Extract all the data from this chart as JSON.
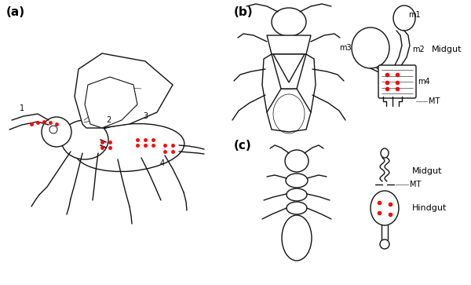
{
  "bg_color": "#ffffff",
  "lc": "#111111",
  "rc": "#ff0000",
  "gc": "#888888",
  "lw": 1.0,
  "fs_panel": 11,
  "fs_label": 7,
  "fs_num": 7,
  "panel_a_label": "(a)",
  "panel_b_label": "(b)",
  "panel_c_label": "(c)"
}
